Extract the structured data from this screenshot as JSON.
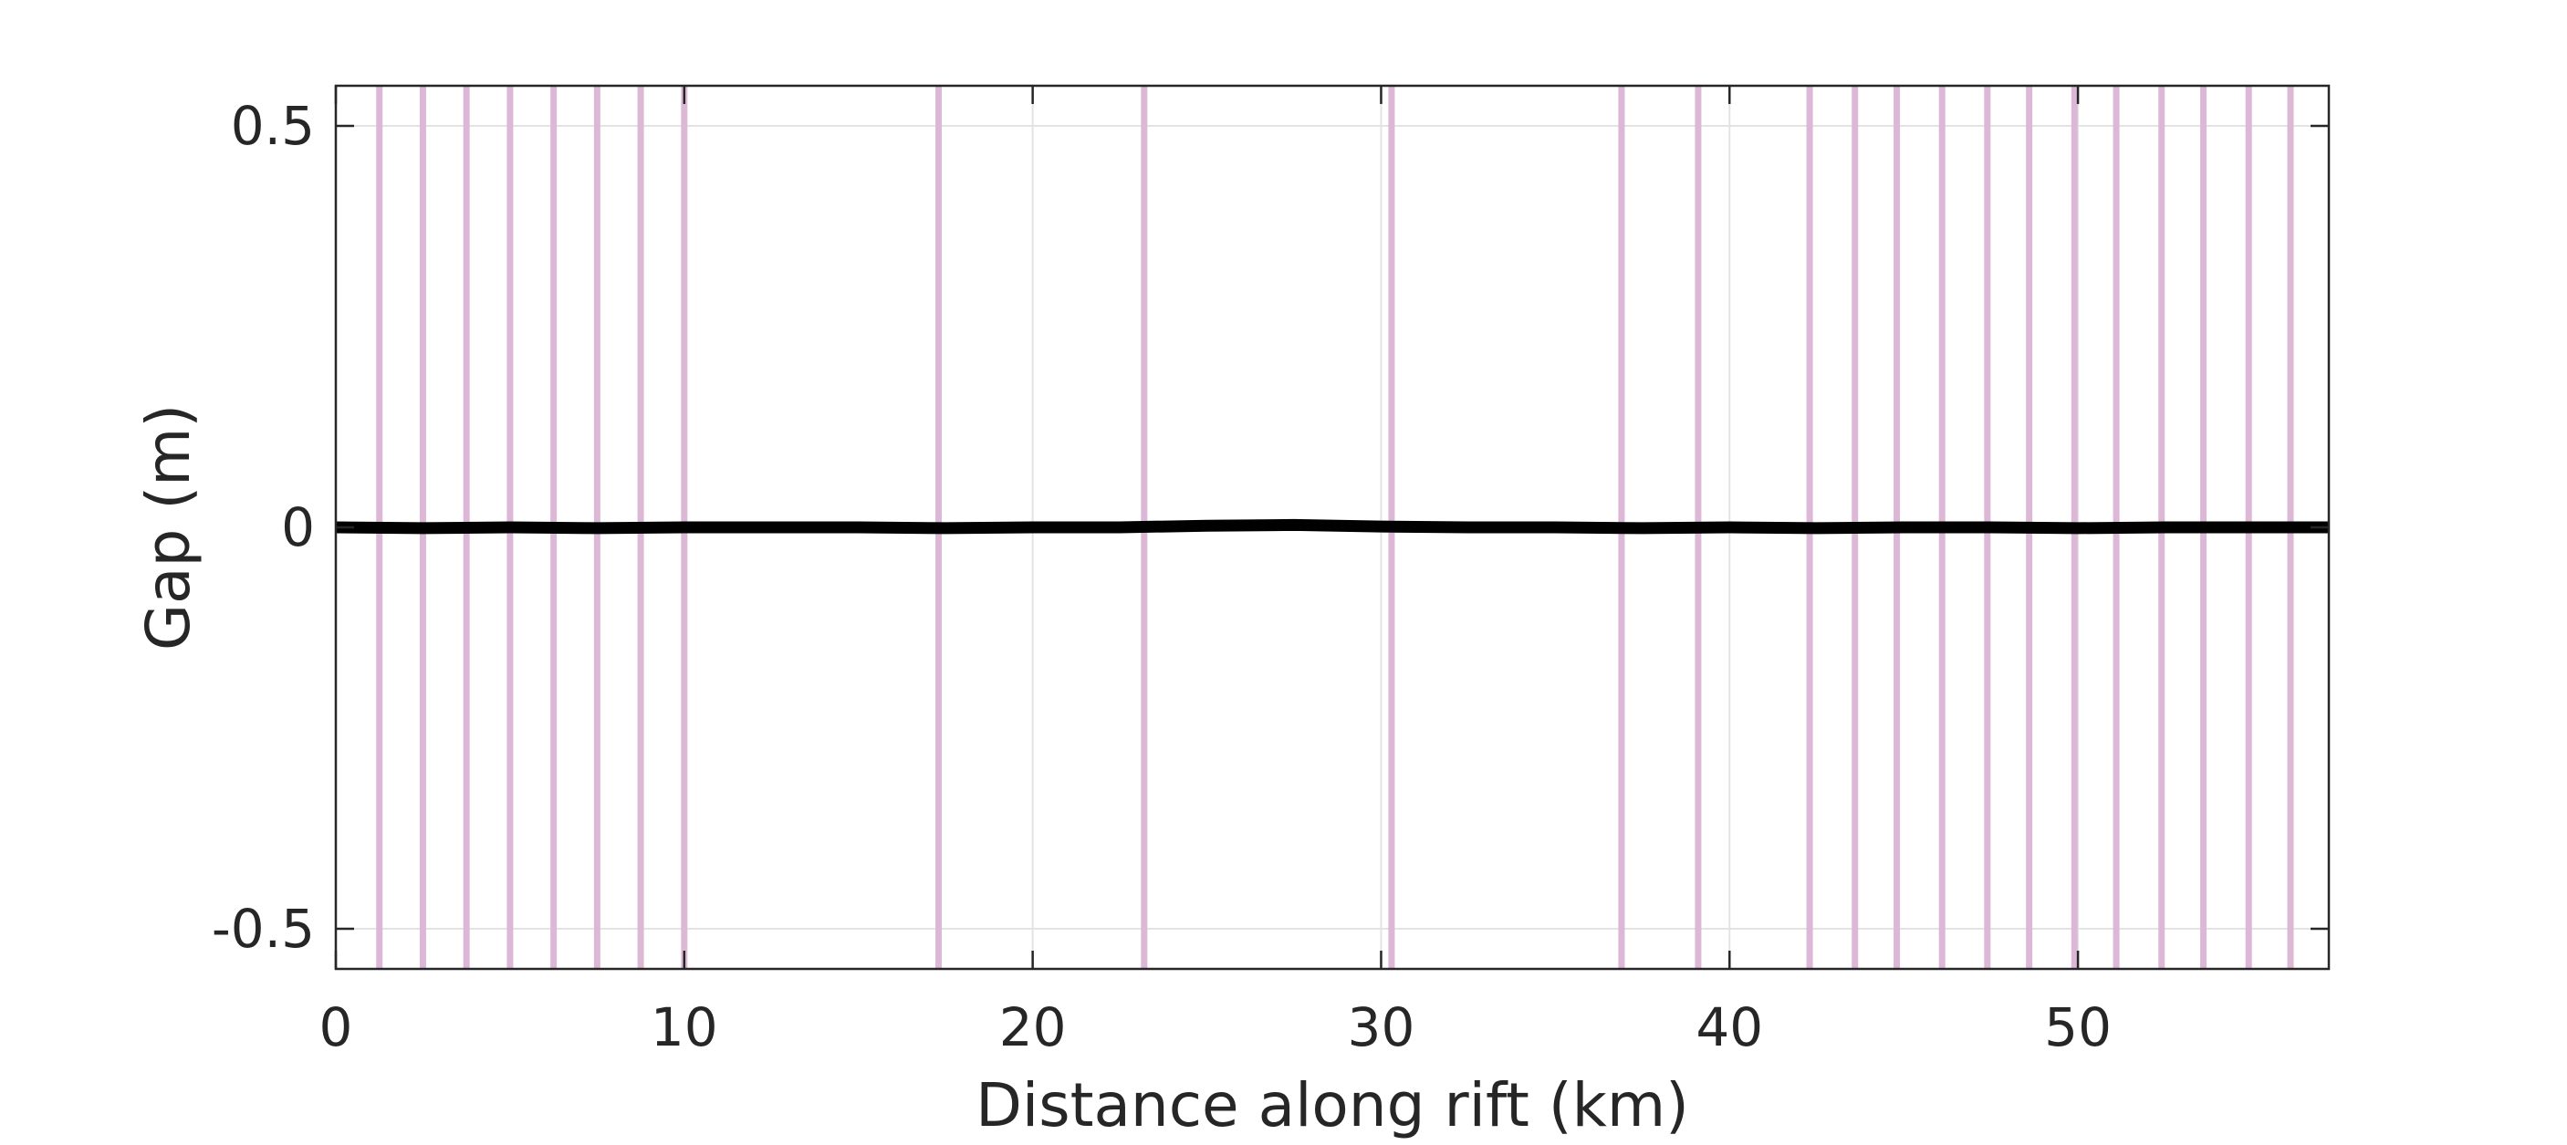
{
  "chart_data": {
    "type": "line",
    "xlabel": "Distance along rift (km)",
    "ylabel": "Gap (m)",
    "xlim": [
      0,
      57.2
    ],
    "ylim": [
      -0.55,
      0.55
    ],
    "xticks": [
      0,
      10,
      20,
      30,
      40,
      50
    ],
    "xtick_labels": [
      "0",
      "10",
      "20",
      "30",
      "40",
      "50"
    ],
    "yticks": [
      -0.5,
      0,
      0.5
    ],
    "ytick_labels": [
      "-0.5",
      "0",
      "0.5"
    ],
    "grid": true,
    "series": [
      {
        "color": "#000000",
        "x": [
          0,
          2.5,
          5,
          7.5,
          10,
          12.5,
          15,
          17.5,
          20,
          22.5,
          25,
          27.5,
          30,
          32.5,
          35,
          37.5,
          40,
          42.5,
          45,
          47.5,
          50,
          52.5,
          55,
          57.2
        ],
        "y": [
          0,
          -0.001,
          0,
          -0.001,
          0,
          0,
          0,
          -0.001,
          0,
          0,
          0.002,
          0.003,
          0.001,
          0,
          0,
          -0.001,
          0,
          -0.001,
          0,
          0,
          -0.001,
          0,
          0,
          0
        ]
      }
    ],
    "vertical_markers": {
      "color": "#dcb8d6",
      "x": [
        1.25,
        2.5,
        3.75,
        5.0,
        6.25,
        7.5,
        8.75,
        10.0,
        17.3,
        23.2,
        30.3,
        36.9,
        39.1,
        42.3,
        43.6,
        44.8,
        46.1,
        47.4,
        48.6,
        49.9,
        51.1,
        52.4,
        53.6,
        54.9,
        56.1
      ]
    }
  }
}
